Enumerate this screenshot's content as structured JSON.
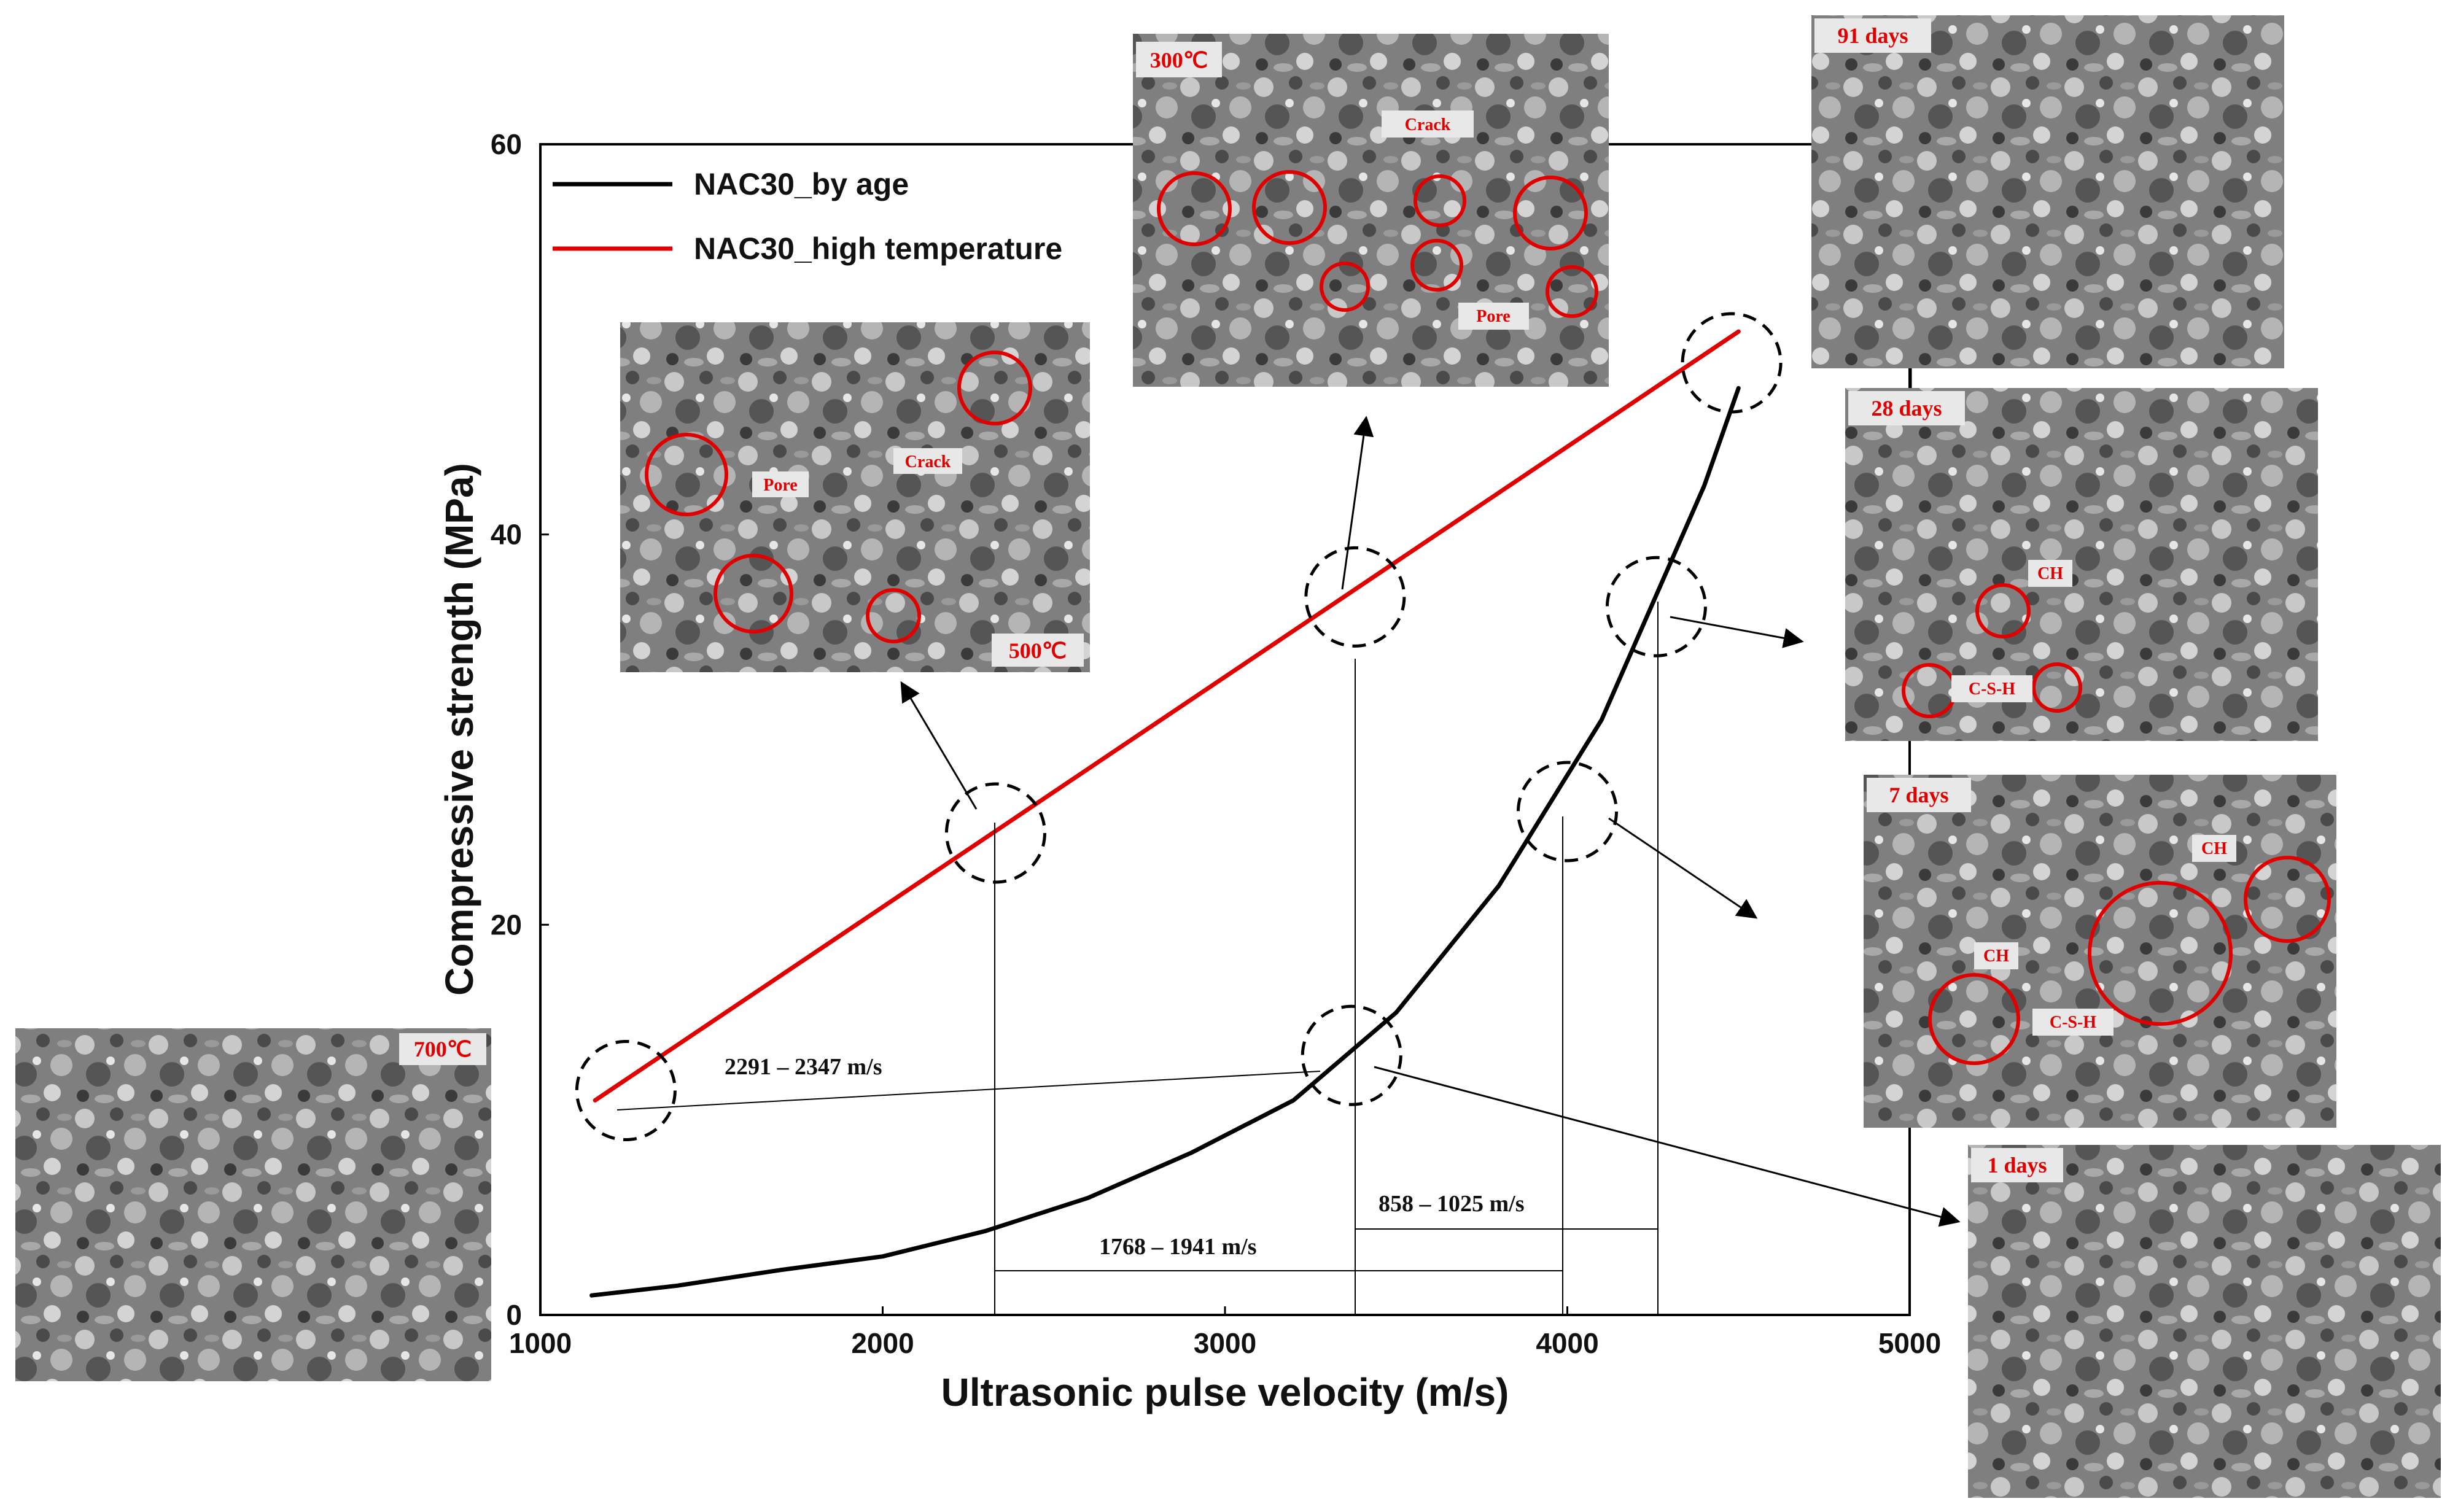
{
  "chart_data": {
    "type": "line",
    "title": "",
    "xlabel": "Ultrasonic pulse velocity (m/s)",
    "ylabel": "Compressive strength (MPa)",
    "xlim": [
      1000,
      5000
    ],
    "ylim": [
      0,
      60
    ],
    "x_ticks": [
      "1000",
      "2000",
      "3000",
      "4000",
      "5000"
    ],
    "y_ticks": [
      "0",
      "20",
      "40",
      "60"
    ],
    "grid": false,
    "legend_position": "top-left",
    "series": [
      {
        "name": "NAC30_by age",
        "color": "#000000",
        "x": [
          1150,
          1400,
          1700,
          2000,
          2300,
          2600,
          2900,
          3200,
          3500,
          3800,
          4100,
          4400,
          4500
        ],
        "y": [
          1.0,
          1.5,
          2.3,
          3.0,
          4.3,
          6.0,
          8.3,
          11.0,
          15.5,
          22.0,
          30.5,
          42.5,
          47.5
        ]
      },
      {
        "name": "NAC30_high temperature",
        "color": "#e00000",
        "x": [
          1160,
          4500
        ],
        "y": [
          11.0,
          50.4
        ]
      }
    ],
    "marked_points": [
      {
        "x": 1250,
        "y": 11.5,
        "label": "700℃"
      },
      {
        "x": 2330,
        "y": 24.7,
        "label": "500℃"
      },
      {
        "x": 3380,
        "y": 36.8,
        "label": "300℃"
      },
      {
        "x": 4480,
        "y": 48.8,
        "label": "91 days"
      },
      {
        "x": 4260,
        "y": 36.3,
        "label": "28 days"
      },
      {
        "x": 4000,
        "y": 25.8,
        "label": "7 days"
      },
      {
        "x": 3370,
        "y": 13.3,
        "label": "1 days"
      }
    ],
    "range_annotations": [
      "2291 – 2347 m/s",
      "1768 – 1941 m/s",
      "858 – 1025 m/s"
    ],
    "micrograph_labels": [
      "700℃",
      "500℃",
      "300℃",
      "91 days",
      "28 days",
      "7 days",
      "1 days"
    ],
    "feature_labels": [
      "Pore",
      "Crack",
      "CH",
      "C-S-H"
    ]
  },
  "colors": {
    "age_series": "#000000",
    "temperature_series": "#e00000",
    "label_red": "#e00000"
  }
}
